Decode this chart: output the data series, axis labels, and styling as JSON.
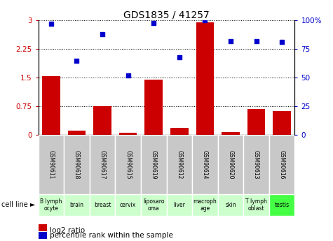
{
  "title": "GDS1835 / 41257",
  "gsm_labels": [
    "GSM90611",
    "GSM90618",
    "GSM90617",
    "GSM90615",
    "GSM90619",
    "GSM90612",
    "GSM90614",
    "GSM90620",
    "GSM90613",
    "GSM90616"
  ],
  "cell_lines": [
    "B lymph\nocyte",
    "brain",
    "breast",
    "cervix",
    "liposaro\noma",
    "liver",
    "macroph\nage",
    "skin",
    "T lymph\noblast",
    "testis"
  ],
  "cell_line_colors": [
    "#ccffcc",
    "#ccffcc",
    "#ccffcc",
    "#ccffcc",
    "#ccffcc",
    "#ccffcc",
    "#ccffcc",
    "#ccffcc",
    "#ccffcc",
    "#66ff66"
  ],
  "log2_ratio": [
    1.55,
    0.12,
    0.75,
    0.05,
    1.45,
    0.18,
    2.95,
    0.07,
    0.68,
    0.62
  ],
  "percentile_rank": [
    97,
    65,
    88,
    52,
    98,
    68,
    100,
    82,
    82,
    81
  ],
  "ylim_left": [
    0,
    3
  ],
  "ylim_right": [
    0,
    100
  ],
  "yticks_left": [
    0,
    0.75,
    1.5,
    2.25,
    3
  ],
  "ytick_labels_left": [
    "0",
    "0.75",
    "1.5",
    "2.25",
    "3"
  ],
  "yticks_right": [
    0,
    25,
    50,
    75,
    100
  ],
  "ytick_labels_right": [
    "0",
    "25",
    "50",
    "75",
    "100%"
  ],
  "bar_color": "#cc0000",
  "dot_color": "#0000cc",
  "gsm_bg_color": "#c8c8c8",
  "cell_line_bg_color_light": "#ccffcc",
  "cell_line_bg_color_bright": "#44ff44",
  "legend_bar_label": "log2 ratio",
  "legend_dot_label": "percentile rank within the sample",
  "cell_line_label": "cell line"
}
